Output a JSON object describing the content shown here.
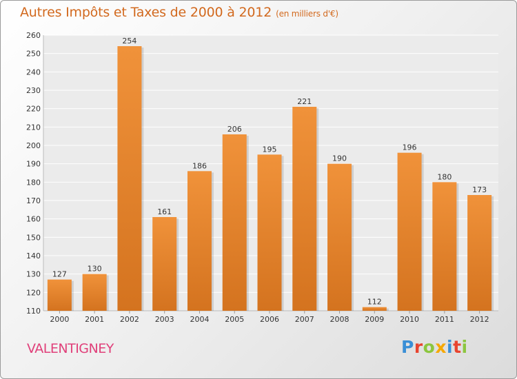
{
  "chart_data": {
    "type": "bar",
    "title": "Autres Impôts et Taxes de 2000 à 2012",
    "subtitle": "(en milliers d'€)",
    "categories": [
      "2000",
      "2001",
      "2002",
      "2003",
      "2004",
      "2005",
      "2006",
      "2007",
      "2008",
      "2009",
      "2010",
      "2011",
      "2012"
    ],
    "values": [
      127,
      130,
      254,
      161,
      186,
      206,
      195,
      221,
      190,
      112,
      196,
      180,
      173
    ],
    "value_labels": [
      "127",
      "130",
      "254",
      "161",
      "186",
      "206",
      "195",
      "221",
      "190",
      "112",
      "196",
      "180",
      "173"
    ],
    "ylim": [
      110,
      260
    ],
    "yticks": [
      "110",
      "120",
      "130",
      "140",
      "150",
      "160",
      "170",
      "180",
      "190",
      "200",
      "210",
      "220",
      "230",
      "240",
      "250",
      "260"
    ],
    "xlabel": "",
    "ylabel": "",
    "grid": true,
    "bar_color": "#f0923a",
    "bar_color_dark": "#d4731f"
  },
  "footer": {
    "city": "VALENTIGNEY"
  },
  "logo": {
    "letters": [
      {
        "char": "P",
        "color": "#3a8fd6"
      },
      {
        "char": "r",
        "color": "#e8442f"
      },
      {
        "char": "o",
        "color": "#8cc63f"
      },
      {
        "char": "x",
        "color": "#f6a800"
      },
      {
        "char": "i",
        "color": "#3a8fd6"
      },
      {
        "char": "t",
        "color": "#e8442f"
      },
      {
        "char": "i",
        "color": "#8cc63f"
      }
    ]
  }
}
